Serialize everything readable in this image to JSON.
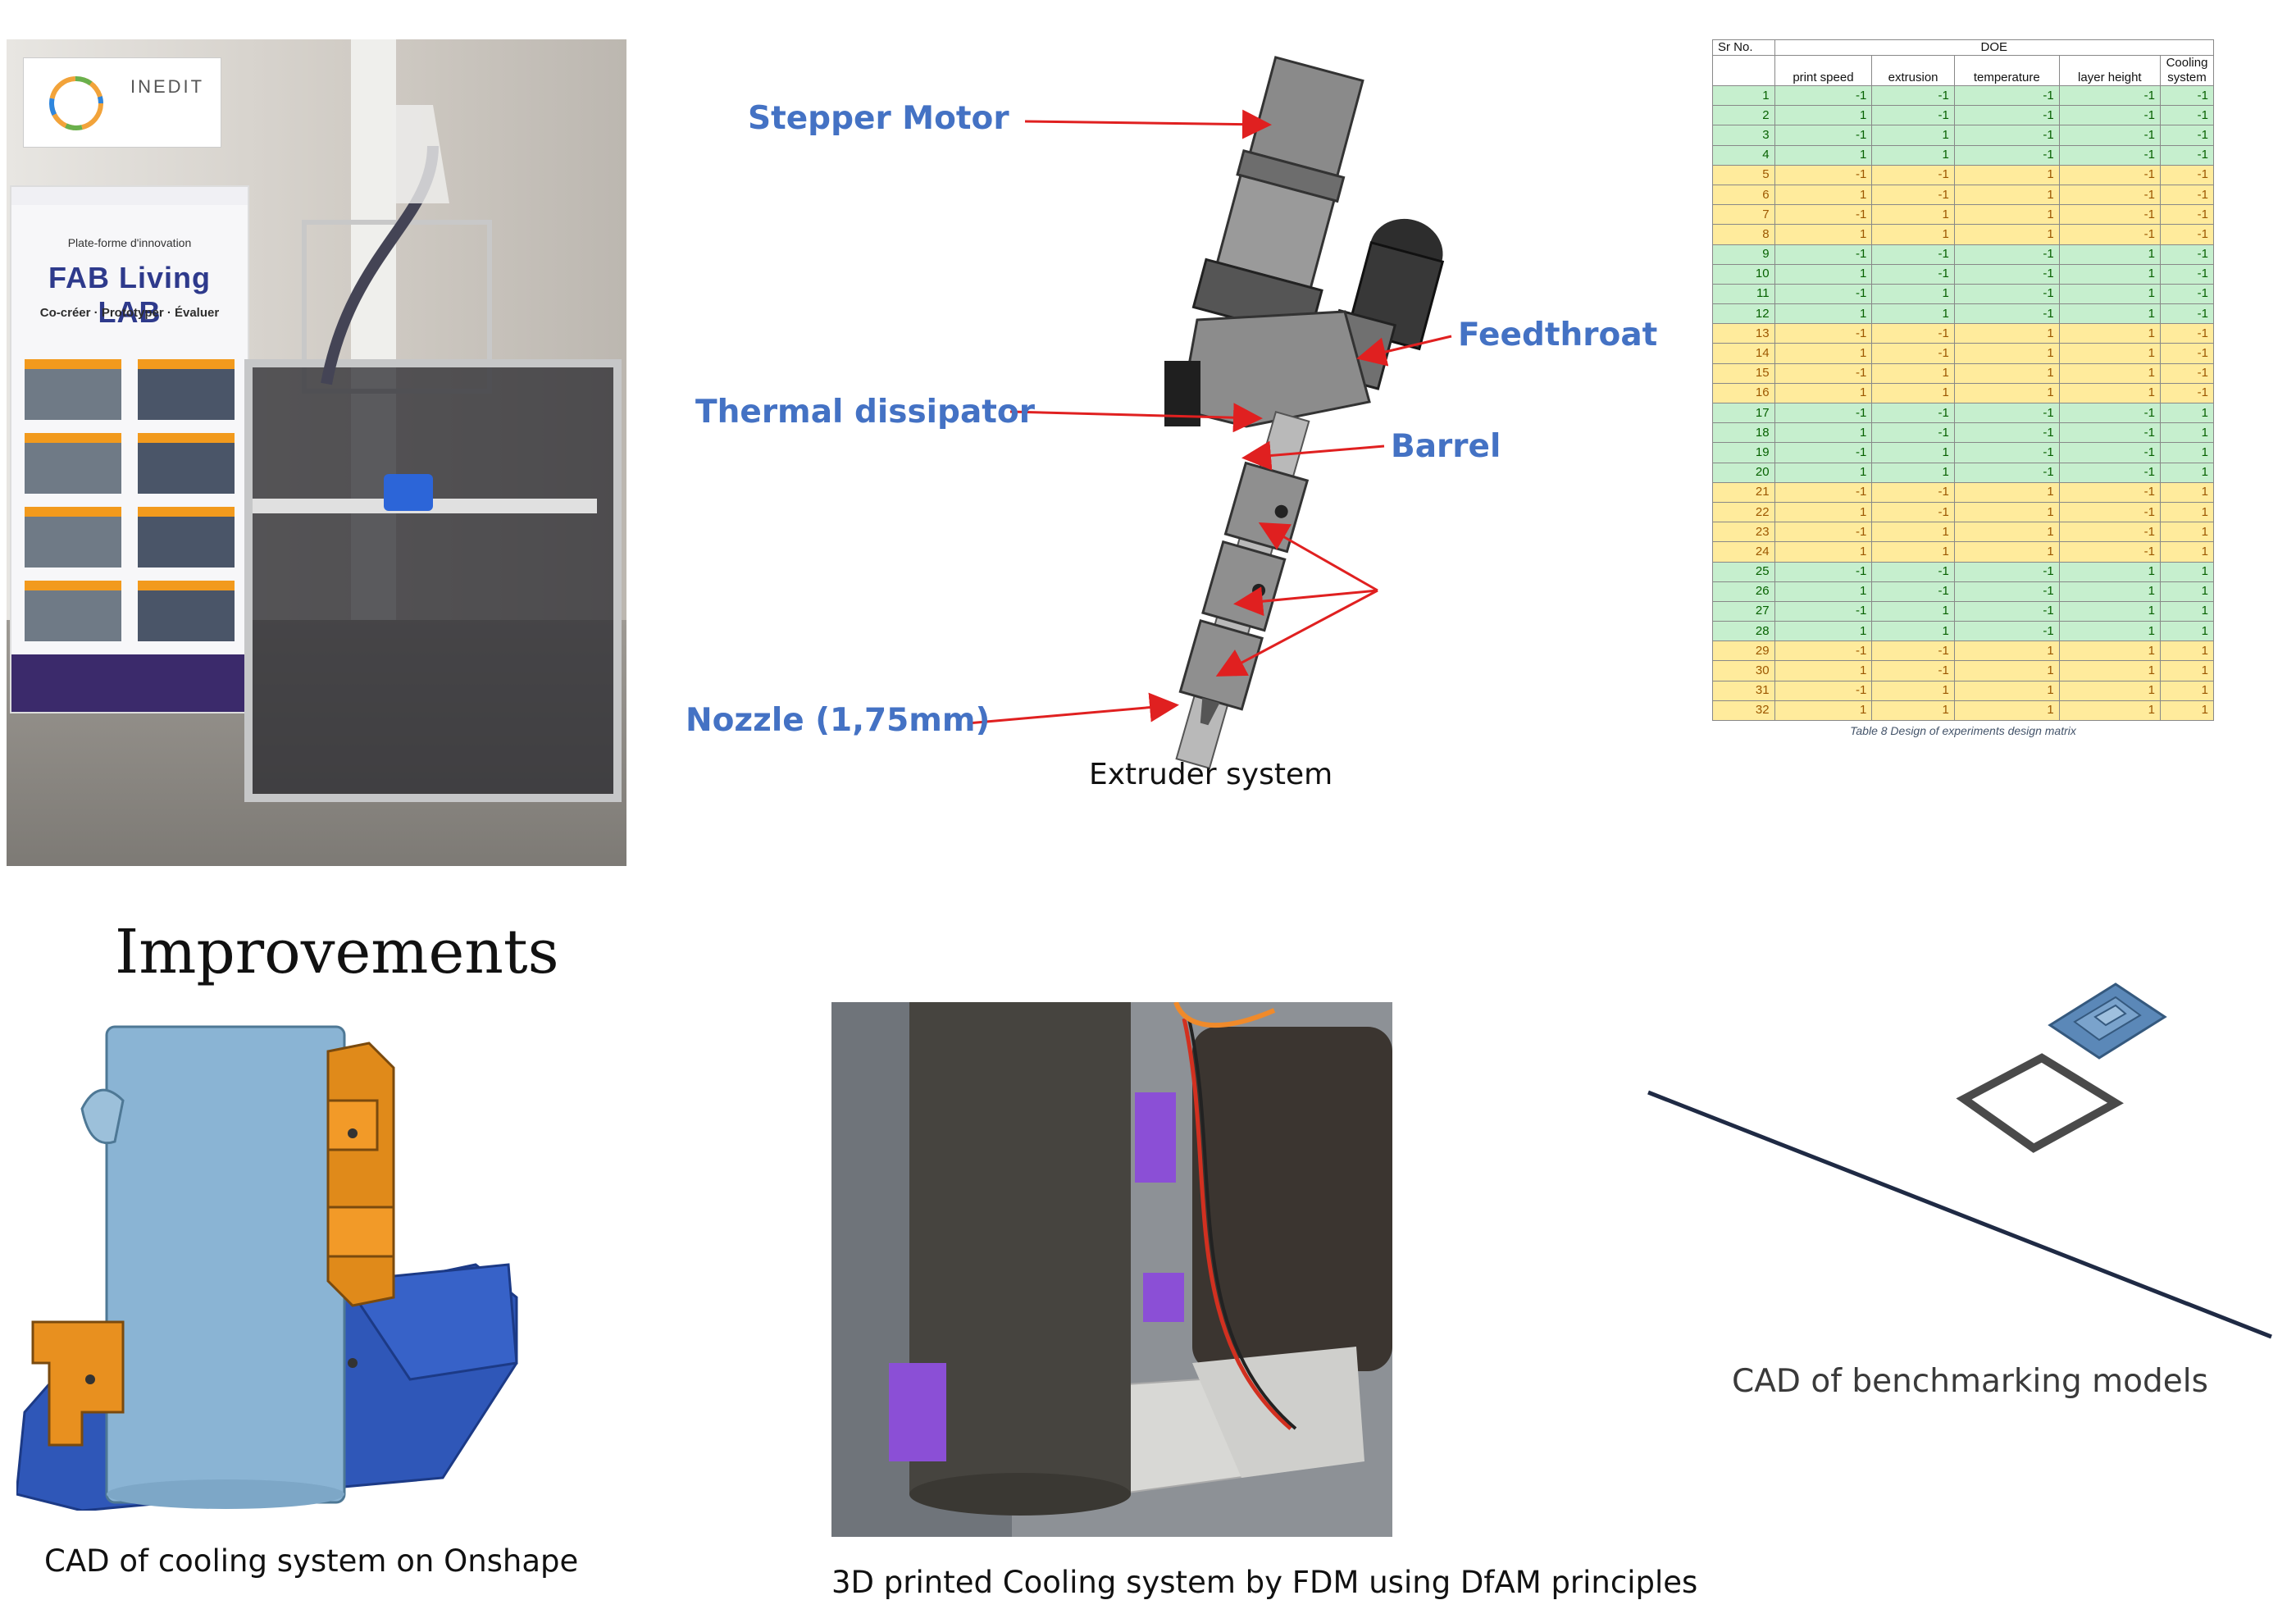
{
  "top": {
    "photo_printer": {
      "banner_logo_text": "INEDIT",
      "banner_heading": "Plate-forme d'innovation",
      "banner_brand": "FAB Living LAB",
      "banner_tagline": "Co-créer · Prototyper · Évaluer"
    },
    "extruder_diagram": {
      "labels": {
        "stepper_motor": "Stepper Motor",
        "feedthroat": "Feedthroat",
        "thermal_dissipator": "Thermal dissipator",
        "barrel": "Barrel",
        "nozzle": "Nozzle (1,75mm)"
      },
      "caption": "Extruder system",
      "colors": {
        "label": "#4472c4",
        "arrow": "#e02020"
      }
    },
    "doe_table": {
      "headers": {
        "sr_no": "Sr No.",
        "group": "DOE",
        "columns": [
          "print speed",
          "extrusion",
          "temperature",
          "layer height",
          "Cooling system"
        ]
      },
      "rows": [
        {
          "n": "1",
          "v": [
            "-1",
            "-1",
            "-1",
            "-1",
            "-1"
          ],
          "band": "green"
        },
        {
          "n": "2",
          "v": [
            "1",
            "-1",
            "-1",
            "-1",
            "-1"
          ],
          "band": "green"
        },
        {
          "n": "3",
          "v": [
            "-1",
            "1",
            "-1",
            "-1",
            "-1"
          ],
          "band": "green"
        },
        {
          "n": "4",
          "v": [
            "1",
            "1",
            "-1",
            "-1",
            "-1"
          ],
          "band": "green"
        },
        {
          "n": "5",
          "v": [
            "-1",
            "-1",
            "1",
            "-1",
            "-1"
          ],
          "band": "yellow"
        },
        {
          "n": "6",
          "v": [
            "1",
            "-1",
            "1",
            "-1",
            "-1"
          ],
          "band": "yellow"
        },
        {
          "n": "7",
          "v": [
            "-1",
            "1",
            "1",
            "-1",
            "-1"
          ],
          "band": "yellow"
        },
        {
          "n": "8",
          "v": [
            "1",
            "1",
            "1",
            "-1",
            "-1"
          ],
          "band": "yellow"
        },
        {
          "n": "9",
          "v": [
            "-1",
            "-1",
            "-1",
            "1",
            "-1"
          ],
          "band": "green"
        },
        {
          "n": "10",
          "v": [
            "1",
            "-1",
            "-1",
            "1",
            "-1"
          ],
          "band": "green"
        },
        {
          "n": "11",
          "v": [
            "-1",
            "1",
            "-1",
            "1",
            "-1"
          ],
          "band": "green"
        },
        {
          "n": "12",
          "v": [
            "1",
            "1",
            "-1",
            "1",
            "-1"
          ],
          "band": "green"
        },
        {
          "n": "13",
          "v": [
            "-1",
            "-1",
            "1",
            "1",
            "-1"
          ],
          "band": "yellow"
        },
        {
          "n": "14",
          "v": [
            "1",
            "-1",
            "1",
            "1",
            "-1"
          ],
          "band": "yellow"
        },
        {
          "n": "15",
          "v": [
            "-1",
            "1",
            "1",
            "1",
            "-1"
          ],
          "band": "yellow"
        },
        {
          "n": "16",
          "v": [
            "1",
            "1",
            "1",
            "1",
            "-1"
          ],
          "band": "yellow"
        },
        {
          "n": "17",
          "v": [
            "-1",
            "-1",
            "-1",
            "-1",
            "1"
          ],
          "band": "green"
        },
        {
          "n": "18",
          "v": [
            "1",
            "-1",
            "-1",
            "-1",
            "1"
          ],
          "band": "green"
        },
        {
          "n": "19",
          "v": [
            "-1",
            "1",
            "-1",
            "-1",
            "1"
          ],
          "band": "green"
        },
        {
          "n": "20",
          "v": [
            "1",
            "1",
            "-1",
            "-1",
            "1"
          ],
          "band": "green"
        },
        {
          "n": "21",
          "v": [
            "-1",
            "-1",
            "1",
            "-1",
            "1"
          ],
          "band": "yellow"
        },
        {
          "n": "22",
          "v": [
            "1",
            "-1",
            "1",
            "-1",
            "1"
          ],
          "band": "yellow"
        },
        {
          "n": "23",
          "v": [
            "-1",
            "1",
            "1",
            "-1",
            "1"
          ],
          "band": "yellow"
        },
        {
          "n": "24",
          "v": [
            "1",
            "1",
            "1",
            "-1",
            "1"
          ],
          "band": "yellow"
        },
        {
          "n": "25",
          "v": [
            "-1",
            "-1",
            "-1",
            "1",
            "1"
          ],
          "band": "green"
        },
        {
          "n": "26",
          "v": [
            "1",
            "-1",
            "-1",
            "1",
            "1"
          ],
          "band": "green"
        },
        {
          "n": "27",
          "v": [
            "-1",
            "1",
            "-1",
            "1",
            "1"
          ],
          "band": "green"
        },
        {
          "n": "28",
          "v": [
            "1",
            "1",
            "-1",
            "1",
            "1"
          ],
          "band": "green"
        },
        {
          "n": "29",
          "v": [
            "-1",
            "-1",
            "1",
            "1",
            "1"
          ],
          "band": "yellow"
        },
        {
          "n": "30",
          "v": [
            "1",
            "-1",
            "1",
            "1",
            "1"
          ],
          "band": "yellow"
        },
        {
          "n": "31",
          "v": [
            "-1",
            "1",
            "1",
            "1",
            "1"
          ],
          "band": "yellow"
        },
        {
          "n": "32",
          "v": [
            "1",
            "1",
            "1",
            "1",
            "1"
          ],
          "band": "yellow"
        }
      ],
      "caption": "Table 8 Design of experiments design matrix"
    }
  },
  "bottom": {
    "heading": "Improvements",
    "cad_cooling_caption": "CAD of cooling system on Onshape",
    "photo_cooling_caption": "3D printed Cooling system by FDM using DfAM principles",
    "benchmark_caption": "CAD of benchmarking models"
  }
}
